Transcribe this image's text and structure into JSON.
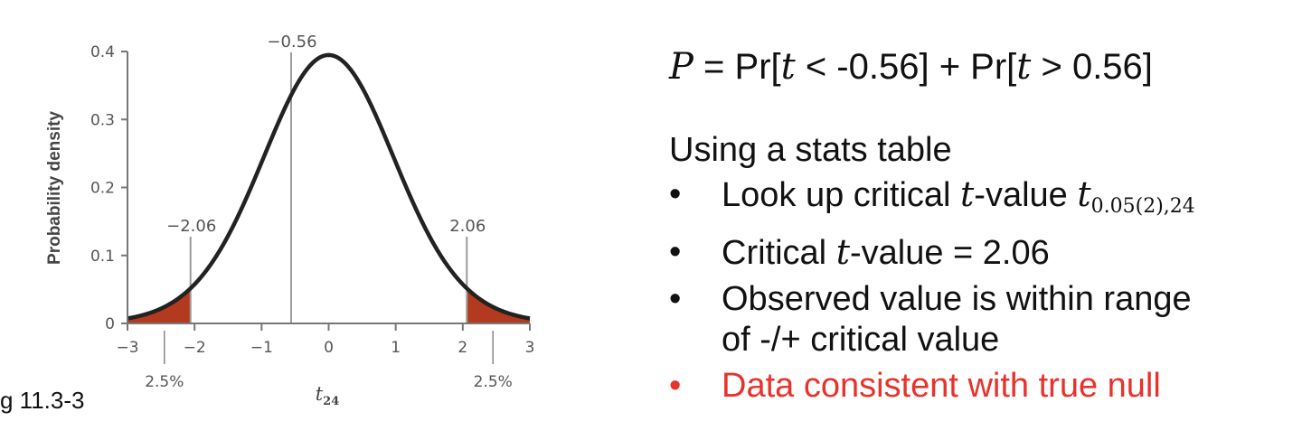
{
  "chart_data": {
    "type": "line",
    "distribution": "Student t, df = 24",
    "xlabel": "t",
    "xlabel_sub": "24",
    "ylabel": "Probability density",
    "xlim": [
      -3,
      3
    ],
    "ylim": [
      0,
      0.4
    ],
    "x_ticks": [
      -3,
      -2,
      -1,
      0,
      1,
      2,
      3
    ],
    "x_tick_labels": [
      "−3",
      "−2",
      "−1",
      "0",
      "1",
      "2",
      "3"
    ],
    "y_ticks": [
      0,
      0.1,
      0.2,
      0.3,
      0.4
    ],
    "y_tick_labels": [
      "0",
      "0.1",
      "0.2",
      "0.3",
      "0.4"
    ],
    "df": 24,
    "curve_color": "#222222",
    "shade_color": "#b33a1e",
    "shaded_regions": [
      {
        "from": -3,
        "to": -2.06,
        "label": "2.5%",
        "label_x": -2.45
      },
      {
        "from": 2.06,
        "to": 3,
        "label": "2.5%",
        "label_x": 2.45
      }
    ],
    "markers": [
      {
        "x": -0.56,
        "label": "−0.56",
        "kind": "observed"
      },
      {
        "x": -2.06,
        "label": "−2.06",
        "kind": "critical"
      },
      {
        "x": 2.06,
        "label": "2.06",
        "kind": "critical"
      }
    ],
    "grid": false
  },
  "caption": "g 11.3-3",
  "panel": {
    "formula": {
      "p": "P",
      "eq": " = Pr[",
      "t1": "t",
      "mid1": " < -0.56] + Pr[",
      "t2": "t",
      "mid2": " > 0.56]"
    },
    "intro": "Using a stats table",
    "bullets": {
      "b1_pre": "Look up critical ",
      "b1_t": "t",
      "b1_mid": "-value ",
      "b1_t2": "t",
      "b1_sub": "0.05(2),24",
      "b2_pre": "Critical ",
      "b2_t": "t",
      "b2_post": "-value = 2.06",
      "b3_line1": "Observed value is within range",
      "b3_line2": "of -/+ critical value",
      "b4": "Data consistent with true null"
    },
    "accent_color": "#e8322c"
  }
}
